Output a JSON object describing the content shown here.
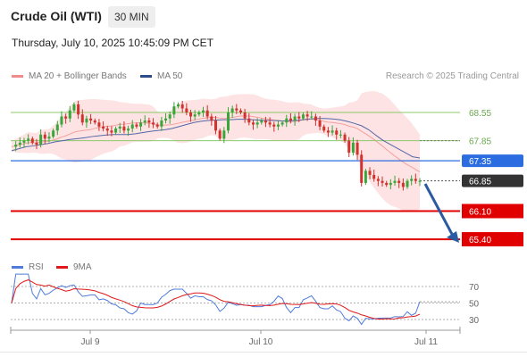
{
  "header": {
    "title": "Crude Oil (WTI)",
    "timeframe": "30 MIN",
    "datetime": "Thursday, July 10, 2025 10:45:09 PM CET"
  },
  "legend": {
    "bb_label": "MA 20 + Bollinger Bands",
    "ma50_label": "MA 50",
    "credit": "Research © 2025 Trading Central"
  },
  "indicator_legend": {
    "rsi_label": "RSI",
    "ma9_label": "9MA"
  },
  "colors": {
    "up": "#3aa63a",
    "down": "#d0322d",
    "bollinger": "#f5a0a0",
    "ma50": "#5567a8",
    "rsi": "#4f7bdc",
    "rsi_ma": "#e01818",
    "support_red": "#e00000",
    "pivot_blue": "#2b6de0",
    "resistance_green": "#8cc96a",
    "arrow": "#2a5aa0",
    "price_tag": "#333333"
  },
  "chart_data": {
    "type": "candlestick",
    "y_range": [
      64.9,
      69.3
    ],
    "x_labels": [
      "Jul 9",
      "Jul 10",
      "Jul 11"
    ],
    "levels": [
      {
        "value": 68.55,
        "label": "68.55",
        "kind": "resistance"
      },
      {
        "value": 67.85,
        "label": "67.85",
        "kind": "resistance"
      },
      {
        "value": 67.35,
        "label": "67.35",
        "kind": "pivot"
      },
      {
        "value": 66.85,
        "label": "66.85",
        "kind": "last-price"
      },
      {
        "value": 66.1,
        "label": "66.10",
        "kind": "support"
      },
      {
        "value": 65.4,
        "label": "65.40",
        "kind": "support"
      }
    ],
    "close": [
      67.7,
      67.75,
      67.8,
      67.85,
      67.9,
      67.8,
      67.75,
      68.0,
      67.9,
      67.95,
      68.1,
      68.25,
      68.45,
      68.4,
      68.6,
      68.75,
      68.5,
      68.3,
      68.4,
      68.35,
      68.3,
      68.2,
      68.15,
      68.1,
      68.05,
      68.15,
      68.2,
      68.1,
      68.15,
      68.25,
      68.2,
      68.3,
      68.35,
      68.3,
      68.25,
      68.2,
      68.35,
      68.4,
      68.5,
      68.7,
      68.75,
      68.65,
      68.55,
      68.45,
      68.5,
      68.55,
      68.6,
      68.45,
      68.35,
      68.1,
      67.9,
      68.1,
      68.55,
      68.65,
      68.6,
      68.55,
      68.4,
      68.3,
      68.25,
      68.3,
      68.35,
      68.3,
      68.25,
      68.2,
      68.25,
      68.3,
      68.4,
      68.35,
      68.45,
      68.4,
      68.5,
      68.45,
      68.45,
      68.35,
      68.2,
      68.1,
      68.05,
      68.1,
      68.0,
      68.0,
      67.85,
      67.55,
      67.8,
      67.5,
      66.8,
      67.1,
      67.0,
      66.9,
      66.85,
      66.8,
      66.75,
      66.8,
      66.85,
      66.8,
      66.7,
      66.85,
      66.9,
      66.85,
      66.85
    ],
    "ma50": [
      67.6,
      67.65,
      67.7,
      67.72,
      67.75,
      67.78,
      67.82,
      67.85,
      67.88,
      67.9,
      67.92,
      67.95,
      67.97,
      67.99,
      68.0,
      68.0,
      68.0,
      68.02,
      68.05,
      68.08,
      68.1,
      68.12,
      68.15,
      68.2,
      68.25,
      68.3,
      68.33,
      68.35,
      68.36,
      68.37,
      68.37,
      68.38,
      68.38,
      68.37,
      68.36,
      68.35,
      68.35,
      68.34,
      68.34,
      68.35,
      68.37,
      68.39,
      68.4,
      68.4,
      68.39,
      68.37,
      68.33,
      68.28,
      68.22,
      68.12,
      67.98,
      67.85,
      67.75,
      67.65,
      67.55,
      67.45,
      67.42
    ],
    "rsi_ticks": [
      70,
      50,
      30
    ]
  }
}
